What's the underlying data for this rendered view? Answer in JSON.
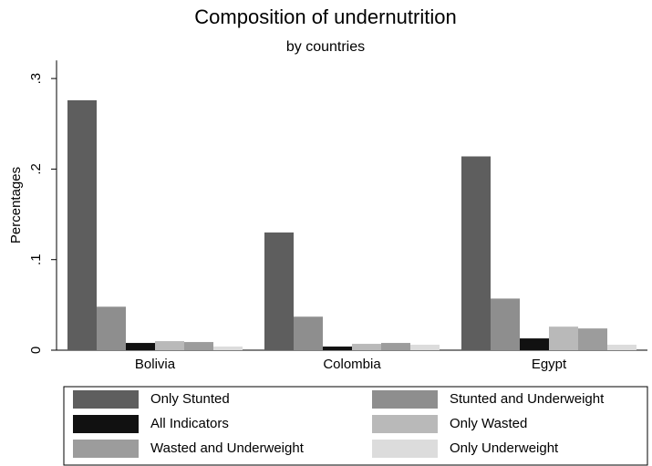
{
  "chart_data": {
    "type": "bar",
    "title": "Composition of undernutrition",
    "subtitle": "by countries",
    "y_label": "Percentages",
    "categories": [
      "Bolivia",
      "Colombia",
      "Egypt"
    ],
    "series": [
      {
        "name": "Only Stunted",
        "color": "#5e5e5e",
        "values": [
          0.276,
          0.13,
          0.214
        ]
      },
      {
        "name": "Stunted and Underweight",
        "color": "#8e8e8e",
        "values": [
          0.048,
          0.037,
          0.057
        ]
      },
      {
        "name": "All Indicators",
        "color": "#111111",
        "values": [
          0.008,
          0.004,
          0.013
        ]
      },
      {
        "name": "Only Wasted",
        "color": "#b9b9b9",
        "values": [
          0.01,
          0.007,
          0.026
        ]
      },
      {
        "name": "Wasted and Underweight",
        "color": "#9c9c9c",
        "values": [
          0.009,
          0.008,
          0.024
        ]
      },
      {
        "name": "Only Underweight",
        "color": "#dcdcdc",
        "values": [
          0.004,
          0.006,
          0.006
        ]
      }
    ],
    "ylim": [
      0,
      0.32
    ],
    "yticks": [
      {
        "value": 0,
        "label": "0"
      },
      {
        "value": 0.1,
        "label": ".1"
      },
      {
        "value": 0.2,
        "label": ".2"
      },
      {
        "value": 0.3,
        "label": ".3"
      }
    ],
    "grid": false
  }
}
